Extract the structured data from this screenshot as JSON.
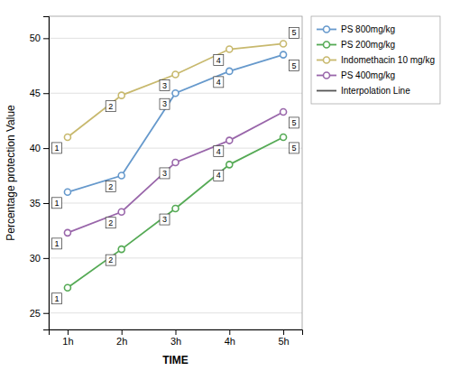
{
  "chart_data": {
    "type": "line",
    "x": [
      1,
      2,
      3,
      4,
      5
    ],
    "xlim": [
      0.65,
      5.35
    ],
    "xticks": [
      {
        "value": 1,
        "label": "1h"
      },
      {
        "value": 2,
        "label": "2h"
      },
      {
        "value": 3,
        "label": "3h"
      },
      {
        "value": 4,
        "label": "4h"
      },
      {
        "value": 5,
        "label": "5h"
      }
    ],
    "ylim": [
      23.5,
      52
    ],
    "yticks": [
      25,
      30,
      35,
      40,
      45,
      50
    ],
    "x_label": "TIME",
    "y_label": "Percentage protection  Value",
    "grid": "y",
    "legend": "right",
    "marker": "circle",
    "series": [
      {
        "name": "PS 800mg/kg",
        "color": "#6699cc",
        "values": [
          36.0,
          37.5,
          45.0,
          47.0,
          48.5
        ],
        "annotations": [
          "1",
          "2",
          "3",
          "4",
          "5"
        ]
      },
      {
        "name": "PS 200mg/kg",
        "color": "#55aa55",
        "values": [
          27.3,
          30.8,
          34.5,
          38.5,
          41.0
        ],
        "annotations": [
          "1",
          "2",
          "3",
          "4",
          "5"
        ]
      },
      {
        "name": "Indomethacin 10 mg/kg",
        "color": "#c8b96e",
        "values": [
          41.0,
          44.8,
          46.7,
          49.0,
          49.5
        ],
        "annotations": [
          "1",
          "2",
          "3",
          "4",
          "5"
        ]
      },
      {
        "name": "PS 400mg/kg",
        "color": "#9966aa",
        "values": [
          32.3,
          34.2,
          38.7,
          40.7,
          43.3
        ],
        "annotations": [
          "1",
          "2",
          "3",
          "4",
          "5"
        ]
      }
    ],
    "interpolation": {
      "name": "Interpolation Line",
      "color": "#555555"
    }
  }
}
